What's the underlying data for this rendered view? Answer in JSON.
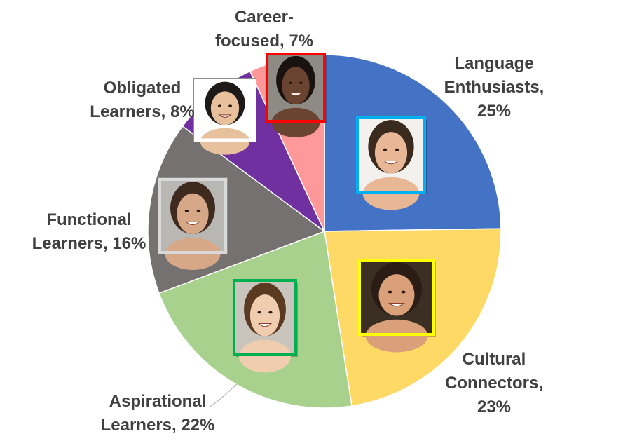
{
  "chart_data": {
    "type": "pie",
    "start_angle_deg": 0,
    "direction": "clockwise",
    "slices": [
      {
        "label": "Language Enthusiasts, 25%",
        "name": "Language Enthusiasts",
        "value": 25,
        "color": "#4472C4",
        "frame_color": "#00B0F0"
      },
      {
        "label": "Cultural Connectors, 23%",
        "name": "Cultural Connectors",
        "value": 23,
        "color": "#FFD966",
        "frame_color": "#FFFF00"
      },
      {
        "label": "Aspirational Learners, 22%",
        "name": "Aspirational Learners",
        "value": 22,
        "color": "#A9D18E",
        "frame_color": "#00B050"
      },
      {
        "label": "Functional Learners, 16%",
        "name": "Functional Learners",
        "value": 16,
        "color": "#767171",
        "frame_color": "#D9D9D9"
      },
      {
        "label": "Obligated Learners, 8%",
        "name": "Obligated Learners",
        "value": 8,
        "color": "#7030A0",
        "frame_color": "#FFFFFF"
      },
      {
        "label": "Career-focused, 7%",
        "name": "Career-focused",
        "value": 7,
        "color": "#FF9999",
        "frame_color": "#FF0000"
      }
    ]
  }
}
